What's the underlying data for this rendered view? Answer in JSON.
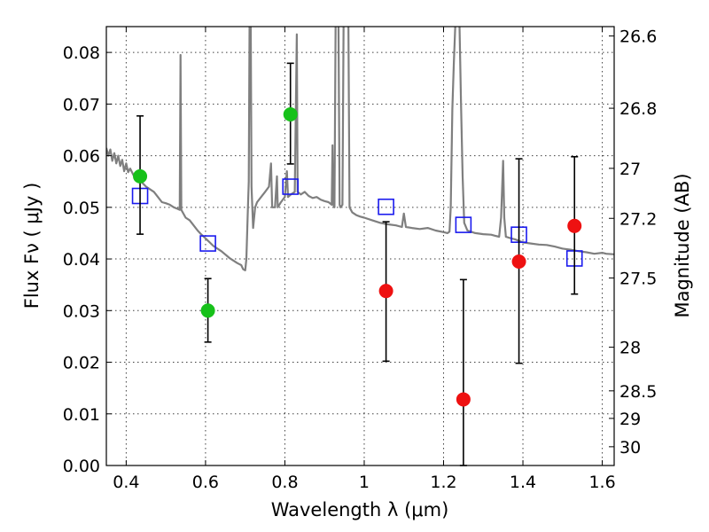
{
  "chart_data": {
    "type": "scatter",
    "title": "",
    "xlabel": "Wavelength  λ (μm)",
    "ylabel": "Flux  Fν  ( μJy )",
    "ylabel_right": "Magnitude (AB)",
    "xlim": [
      0.35,
      1.63
    ],
    "ylim": [
      0.0,
      0.085
    ],
    "grid": true,
    "x_ticks": [
      0.4,
      0.6,
      0.8,
      1.0,
      1.2,
      1.4,
      1.6
    ],
    "x_tick_labels": [
      "0.4",
      "0.6",
      "0.8",
      "1",
      "1.2",
      "1.4",
      "1.6"
    ],
    "y_ticks": [
      0.0,
      0.01,
      0.02,
      0.03,
      0.04,
      0.05,
      0.06,
      0.07,
      0.08
    ],
    "y_tick_labels": [
      "0.00",
      "0.01",
      "0.02",
      "0.03",
      "0.04",
      "0.05",
      "0.06",
      "0.07",
      "0.08"
    ],
    "right_ticks": [
      {
        "mag": 26.6,
        "label": "26.6"
      },
      {
        "mag": 26.8,
        "label": "26.8"
      },
      {
        "mag": 27.0,
        "label": "27"
      },
      {
        "mag": 27.2,
        "label": "27.2"
      },
      {
        "mag": 27.5,
        "label": "27.5"
      },
      {
        "mag": 28.0,
        "label": "28"
      },
      {
        "mag": 28.5,
        "label": "28.5"
      },
      {
        "mag": 29.0,
        "label": "29"
      },
      {
        "mag": 30.0,
        "label": "30"
      }
    ],
    "series": [
      {
        "marker": "circle",
        "color": "#17c11a",
        "points": [
          {
            "x": 0.435,
            "y": 0.056,
            "yerr_low": 0.0448,
            "yerr_high": 0.0677
          },
          {
            "x": 0.606,
            "y": 0.03,
            "yerr_low": 0.0239,
            "yerr_high": 0.0362
          },
          {
            "x": 0.814,
            "y": 0.068,
            "yerr_low": 0.0584,
            "yerr_high": 0.0779
          }
        ]
      },
      {
        "marker": "circle",
        "color": "#ee1111",
        "points": [
          {
            "x": 1.055,
            "y": 0.0338,
            "yerr_low": 0.0202,
            "yerr_high": 0.0472
          },
          {
            "x": 1.25,
            "y": 0.0128,
            "yerr_low": 0.0,
            "yerr_high": 0.036
          },
          {
            "x": 1.39,
            "y": 0.0395,
            "yerr_low": 0.0198,
            "yerr_high": 0.0594
          },
          {
            "x": 1.53,
            "y": 0.0464,
            "yerr_low": 0.0332,
            "yerr_high": 0.0598
          }
        ]
      },
      {
        "marker": "square",
        "color": "#1a1aee",
        "points": [
          {
            "x": 0.435,
            "y": 0.0522
          },
          {
            "x": 0.606,
            "y": 0.043
          },
          {
            "x": 0.814,
            "y": 0.054
          },
          {
            "x": 1.055,
            "y": 0.0501
          },
          {
            "x": 1.25,
            "y": 0.0466
          },
          {
            "x": 1.39,
            "y": 0.0447
          },
          {
            "x": 1.53,
            "y": 0.0401
          }
        ]
      }
    ],
    "spectrum": {
      "color": "#7f7f7f",
      "points": [
        [
          0.35,
          0.0615
        ],
        [
          0.355,
          0.06
        ],
        [
          0.36,
          0.0612
        ],
        [
          0.365,
          0.059
        ],
        [
          0.37,
          0.0605
        ],
        [
          0.375,
          0.0585
        ],
        [
          0.38,
          0.06
        ],
        [
          0.385,
          0.058
        ],
        [
          0.39,
          0.0592
        ],
        [
          0.395,
          0.057
        ],
        [
          0.4,
          0.0585
        ],
        [
          0.405,
          0.0568
        ],
        [
          0.41,
          0.0575
        ],
        [
          0.42,
          0.056
        ],
        [
          0.43,
          0.0555
        ],
        [
          0.44,
          0.0548
        ],
        [
          0.45,
          0.054
        ],
        [
          0.46,
          0.0535
        ],
        [
          0.47,
          0.053
        ],
        [
          0.48,
          0.052
        ],
        [
          0.49,
          0.051
        ],
        [
          0.5,
          0.0508
        ],
        [
          0.51,
          0.0505
        ],
        [
          0.52,
          0.05
        ],
        [
          0.53,
          0.0497
        ],
        [
          0.535,
          0.0495
        ],
        [
          0.537,
          0.0795
        ],
        [
          0.539,
          0.0495
        ],
        [
          0.55,
          0.048
        ],
        [
          0.56,
          0.0475
        ],
        [
          0.57,
          0.0465
        ],
        [
          0.58,
          0.0455
        ],
        [
          0.59,
          0.0447
        ],
        [
          0.6,
          0.044
        ],
        [
          0.62,
          0.0425
        ],
        [
          0.64,
          0.0415
        ],
        [
          0.66,
          0.0402
        ],
        [
          0.68,
          0.0392
        ],
        [
          0.69,
          0.0388
        ],
        [
          0.695,
          0.038
        ],
        [
          0.7,
          0.0378
        ],
        [
          0.703,
          0.04
        ],
        [
          0.706,
          0.048
        ],
        [
          0.709,
          0.055
        ],
        [
          0.711,
          0.086
        ],
        [
          0.714,
          0.086
        ],
        [
          0.716,
          0.054
        ],
        [
          0.72,
          0.046
        ],
        [
          0.725,
          0.05
        ],
        [
          0.73,
          0.051
        ],
        [
          0.74,
          0.052
        ],
        [
          0.75,
          0.053
        ],
        [
          0.76,
          0.054
        ],
        [
          0.765,
          0.0585
        ],
        [
          0.768,
          0.05
        ],
        [
          0.775,
          0.05
        ],
        [
          0.78,
          0.056
        ],
        [
          0.782,
          0.05
        ],
        [
          0.79,
          0.051
        ],
        [
          0.8,
          0.052
        ],
        [
          0.805,
          0.057
        ],
        [
          0.808,
          0.052
        ],
        [
          0.815,
          0.0525
        ],
        [
          0.825,
          0.053
        ],
        [
          0.83,
          0.0835
        ],
        [
          0.832,
          0.053
        ],
        [
          0.84,
          0.0525
        ],
        [
          0.85,
          0.053
        ],
        [
          0.86,
          0.0522
        ],
        [
          0.87,
          0.0518
        ],
        [
          0.88,
          0.052
        ],
        [
          0.89,
          0.0515
        ],
        [
          0.9,
          0.0512
        ],
        [
          0.91,
          0.051
        ],
        [
          0.918,
          0.0505
        ],
        [
          0.92,
          0.062
        ],
        [
          0.922,
          0.0505
        ],
        [
          0.925,
          0.05
        ],
        [
          0.928,
          0.086
        ],
        [
          0.935,
          0.086
        ],
        [
          0.938,
          0.0505
        ],
        [
          0.94,
          0.05
        ],
        [
          0.945,
          0.0505
        ],
        [
          0.948,
          0.086
        ],
        [
          0.96,
          0.086
        ],
        [
          0.963,
          0.05
        ],
        [
          0.97,
          0.049
        ],
        [
          0.98,
          0.0485
        ],
        [
          0.99,
          0.0482
        ],
        [
          1.0,
          0.048
        ],
        [
          1.02,
          0.0475
        ],
        [
          1.04,
          0.047
        ],
        [
          1.06,
          0.0467
        ],
        [
          1.08,
          0.0465
        ],
        [
          1.095,
          0.0462
        ],
        [
          1.1,
          0.0488
        ],
        [
          1.105,
          0.0462
        ],
        [
          1.12,
          0.046
        ],
        [
          1.14,
          0.0458
        ],
        [
          1.16,
          0.046
        ],
        [
          1.18,
          0.0455
        ],
        [
          1.2,
          0.0452
        ],
        [
          1.21,
          0.045
        ],
        [
          1.215,
          0.0453
        ],
        [
          1.218,
          0.05
        ],
        [
          1.222,
          0.069
        ],
        [
          1.226,
          0.078
        ],
        [
          1.23,
          0.086
        ],
        [
          1.24,
          0.086
        ],
        [
          1.244,
          0.07
        ],
        [
          1.248,
          0.056
        ],
        [
          1.252,
          0.047
        ],
        [
          1.26,
          0.0455
        ],
        [
          1.28,
          0.045
        ],
        [
          1.3,
          0.0448
        ],
        [
          1.32,
          0.0447
        ],
        [
          1.33,
          0.0445
        ],
        [
          1.34,
          0.0443
        ],
        [
          1.345,
          0.048
        ],
        [
          1.35,
          0.059
        ],
        [
          1.353,
          0.048
        ],
        [
          1.357,
          0.0443
        ],
        [
          1.37,
          0.044
        ],
        [
          1.38,
          0.0438
        ],
        [
          1.39,
          0.0435
        ],
        [
          1.4,
          0.0432
        ],
        [
          1.42,
          0.043
        ],
        [
          1.44,
          0.0428
        ],
        [
          1.46,
          0.0427
        ],
        [
          1.48,
          0.0424
        ],
        [
          1.5,
          0.042
        ],
        [
          1.52,
          0.0418
        ],
        [
          1.54,
          0.0415
        ],
        [
          1.56,
          0.0413
        ],
        [
          1.58,
          0.041
        ],
        [
          1.6,
          0.0412
        ],
        [
          1.61,
          0.041
        ],
        [
          1.63,
          0.0409
        ]
      ]
    }
  }
}
